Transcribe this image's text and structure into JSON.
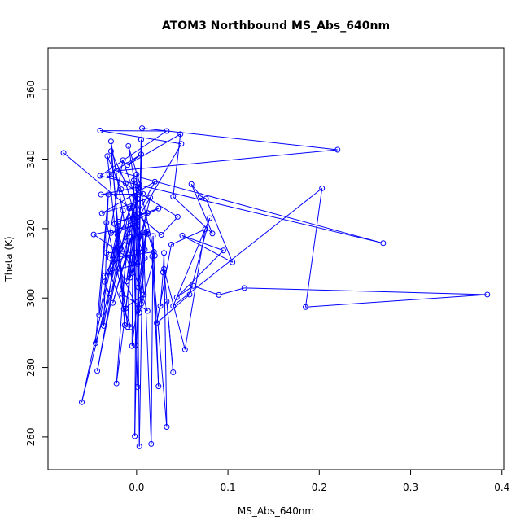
{
  "chart_data": {
    "type": "line",
    "title": "ATOM3 Northbound MS_Abs_640nm",
    "xlabel": "MS_Abs_640nm",
    "ylabel": "Theta (K)",
    "xlim": [
      -0.097,
      0.402
    ],
    "ylim": [
      250.6,
      372.0
    ],
    "x_ticks": [
      0.0,
      0.1,
      0.2,
      0.3,
      0.4
    ],
    "x_tick_labels": [
      "0.0",
      "0.1",
      "0.2",
      "0.3",
      "0.4"
    ],
    "y_ticks": [
      260,
      280,
      300,
      320,
      340,
      360
    ],
    "y_tick_labels": [
      "260",
      "280",
      "300",
      "320",
      "340",
      "360"
    ],
    "grid": false,
    "series": [
      {
        "color": "#0000ff",
        "marker": "open-circle",
        "points": [
          [
            -0.08,
            341.8
          ],
          [
            0.027,
            318.2
          ],
          [
            0.045,
            323.4
          ],
          [
            -0.03,
            335.7
          ],
          [
            0.005,
            341.4
          ],
          [
            -0.01,
            338.3
          ],
          [
            0.048,
            347.2
          ],
          [
            0.04,
            329.2
          ],
          [
            0.083,
            318.6
          ],
          [
            0.06,
            332.8
          ],
          [
            0.07,
            329.4
          ],
          [
            0.076,
            328.6
          ],
          [
            0.105,
            310.3
          ],
          [
            0.05,
            318.0
          ],
          [
            0.095,
            313.7
          ],
          [
            0.044,
            300.2
          ],
          [
            0.062,
            303.5
          ],
          [
            0.09,
            300.9
          ],
          [
            0.118,
            302.9
          ],
          [
            0.384,
            301.0
          ],
          [
            0.185,
            297.4
          ],
          [
            0.203,
            331.6
          ],
          [
            0.04,
            297.7
          ],
          [
            0.08,
            323.0
          ],
          [
            0.058,
            301.0
          ],
          [
            0.022,
            292.8
          ],
          [
            0.038,
            315.4
          ],
          [
            0.075,
            319.8
          ],
          [
            0.053,
            285.2
          ],
          [
            0.03,
            308.4
          ],
          [
            0.04,
            278.6
          ],
          [
            0.033,
            299.0
          ],
          [
            0.026,
            297.7
          ],
          [
            0.029,
            307.4
          ],
          [
            0.03,
            313.0
          ],
          [
            0.033,
            262.9
          ],
          [
            0.017,
            312.0
          ],
          [
            0.024,
            274.6
          ],
          [
            0.018,
            317.9
          ],
          [
            0.016,
            258.0
          ],
          [
            0.007,
            318.9
          ],
          [
            0.003,
            257.3
          ],
          [
            0.0,
            335.6
          ],
          [
            -0.002,
            260.2
          ],
          [
            0.005,
            345.6
          ],
          [
            0.001,
            274.4
          ],
          [
            -0.004,
            322.8
          ],
          [
            -0.005,
            286.2
          ],
          [
            0.011,
            319.2
          ],
          [
            -0.001,
            286.4
          ],
          [
            -0.003,
            333.9
          ],
          [
            -0.01,
            291.7
          ],
          [
            -0.021,
            318.2
          ],
          [
            -0.013,
            292.2
          ],
          [
            -0.028,
            345.1
          ],
          [
            -0.01,
            316.3
          ],
          [
            -0.045,
            287.0
          ],
          [
            -0.031,
            329.8
          ],
          [
            -0.036,
            292.0
          ],
          [
            -0.015,
            325.2
          ],
          [
            -0.06,
            270.0
          ],
          [
            -0.018,
            315.1
          ],
          [
            -0.043,
            279.0
          ],
          [
            -0.008,
            325.8
          ],
          [
            -0.022,
            275.4
          ],
          [
            0.0,
            321.5
          ],
          [
            -0.012,
            297.0
          ],
          [
            -0.033,
            321.7
          ],
          [
            -0.041,
            295.1
          ],
          [
            -0.02,
            320.8
          ],
          [
            -0.03,
            301.3
          ],
          [
            -0.035,
            304.7
          ],
          [
            -0.024,
            310.2
          ],
          [
            -0.009,
            312.5
          ],
          [
            0.012,
            296.3
          ],
          [
            -0.016,
            301.2
          ],
          [
            -0.004,
            326.3
          ],
          [
            0.005,
            298.3
          ],
          [
            0.009,
            311.5
          ],
          [
            -0.017,
            331.3
          ],
          [
            -0.032,
            340.9
          ],
          [
            -0.019,
            308.5
          ],
          [
            0.003,
            295.8
          ],
          [
            0.02,
            312.2
          ],
          [
            0.003,
            332.7
          ],
          [
            -0.011,
            304.8
          ],
          [
            0.001,
            323.2
          ],
          [
            -0.026,
            298.6
          ],
          [
            -0.006,
            317.5
          ],
          [
            0.01,
            318.7
          ],
          [
            0.002,
            303.1
          ],
          [
            0.006,
            348.9
          ],
          [
            0.22,
            342.7
          ],
          [
            -0.022,
            336.6
          ],
          [
            0.27,
            315.8
          ],
          [
            -0.04,
            335.2
          ],
          [
            0.033,
            348.1
          ],
          [
            -0.04,
            348.2
          ],
          [
            0.049,
            344.4
          ],
          [
            -0.035,
            306.4
          ],
          [
            0.02,
            333.5
          ],
          [
            -0.038,
            324.4
          ],
          [
            0.015,
            328.9
          ],
          [
            -0.007,
            305.9
          ],
          [
            0.012,
            324.5
          ],
          [
            -0.02,
            322.0
          ],
          [
            0.024,
            325.8
          ],
          [
            -0.028,
            318.7
          ],
          [
            -0.002,
            320.9
          ],
          [
            -0.047,
            318.3
          ],
          [
            0.001,
            309.8
          ],
          [
            -0.03,
            307.6
          ],
          [
            -0.006,
            291.6
          ],
          [
            -0.014,
            296.9
          ],
          [
            0.008,
            301.0
          ],
          [
            -0.002,
            329.5
          ],
          [
            0.019,
            313.3
          ],
          [
            -0.029,
            311.5
          ],
          [
            0.003,
            332.0
          ],
          [
            -0.039,
            329.8
          ],
          [
            0.007,
            330.0
          ],
          [
            -0.009,
            343.8
          ],
          [
            0.001,
            328.6
          ],
          [
            -0.018,
            314.2
          ],
          [
            -0.028,
            342.3
          ],
          [
            -0.012,
            333.1
          ],
          [
            0.009,
            313.9
          ],
          [
            -0.033,
            313.0
          ],
          [
            -0.015,
            339.7
          ],
          [
            0.012,
            318.5
          ],
          [
            -0.005,
            307.2
          ],
          [
            -0.024,
            321.3
          ]
        ]
      }
    ]
  }
}
